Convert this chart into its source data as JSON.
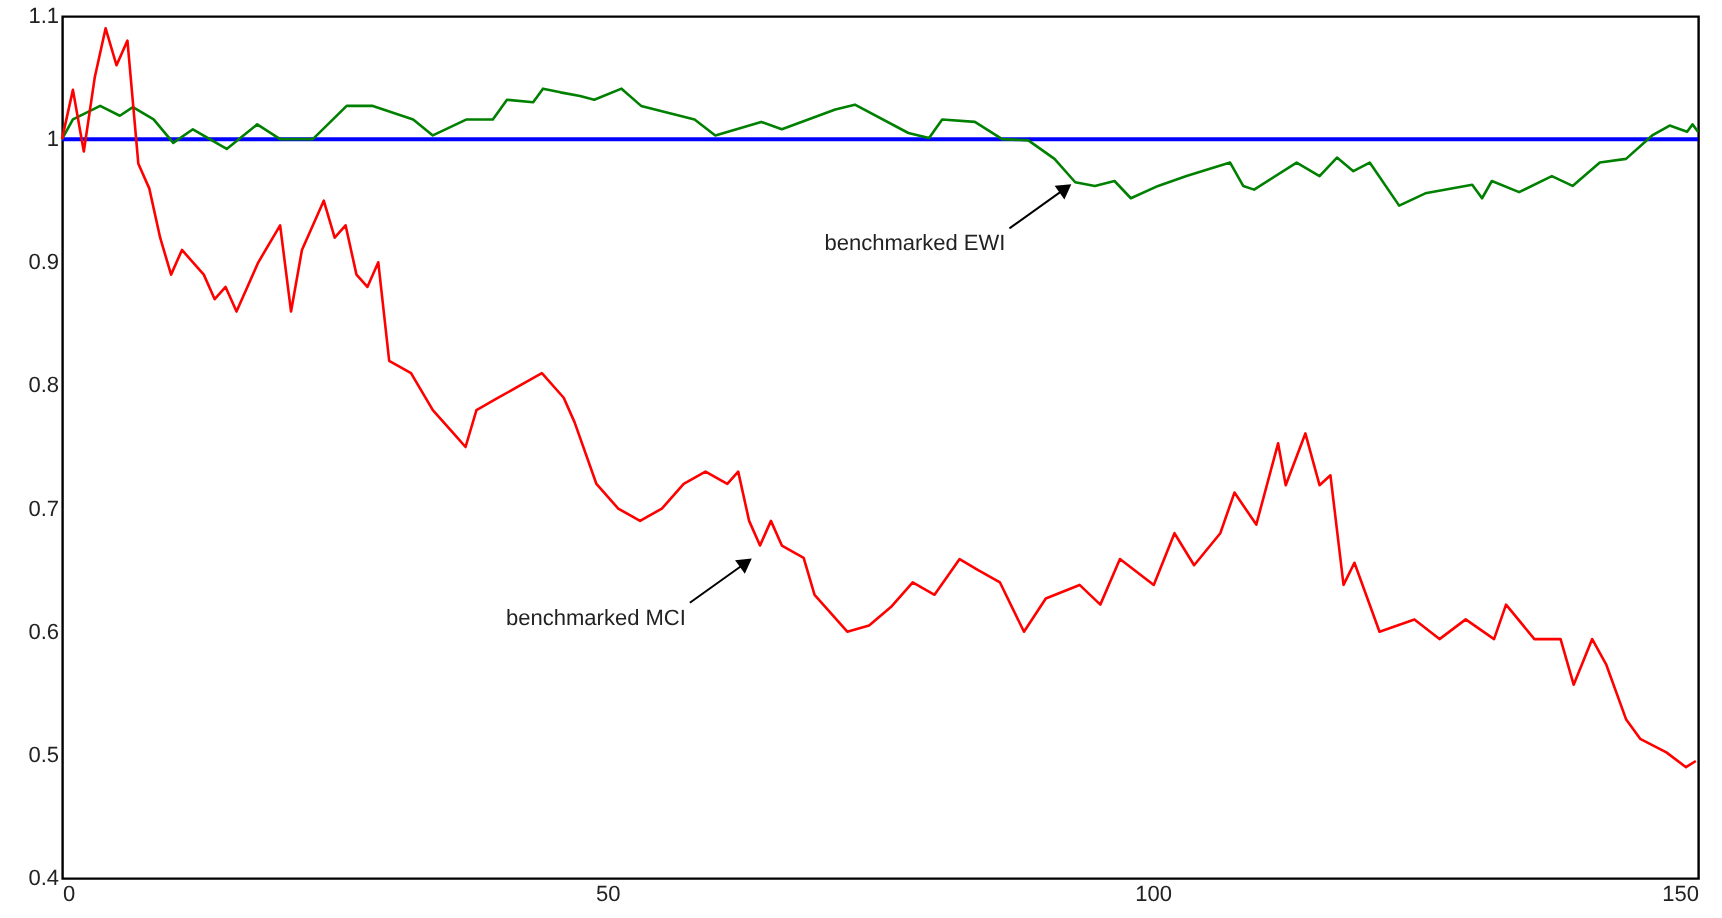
{
  "chart_data": {
    "type": "line",
    "xlim": [
      0,
      150
    ],
    "ylim": [
      0.4,
      1.1
    ],
    "xticks": [
      0,
      50,
      100,
      150
    ],
    "yticks": [
      0.4,
      0.5,
      0.6,
      0.7,
      0.8,
      0.9,
      1,
      1.1
    ],
    "grid": false,
    "marker": "none",
    "line_style": "solid",
    "series": [
      {
        "color": "#0000ff",
        "x": [
          0,
          150
        ],
        "values": [
          1,
          1
        ]
      },
      {
        "color": "#008000",
        "x": [
          0,
          1,
          3.5,
          5.3,
          6.5,
          8.4,
          10.2,
          12,
          15.1,
          17.9,
          20,
          23,
          26.1,
          28.5,
          32.2,
          34,
          37.1,
          39.5,
          40.8,
          43.2,
          44.1,
          45.7,
          47.5,
          48.8,
          51.3,
          53.1,
          58,
          59.9,
          64.1,
          66,
          70.9,
          72.7,
          77.6,
          79.5,
          80.7,
          83.7,
          86.2,
          88.6,
          91,
          92.9,
          94.7,
          96.5,
          98,
          100.5,
          103.1,
          107.1,
          108.3,
          109.3,
          113.2,
          115.3,
          116.9,
          118.4,
          119.9,
          122.6,
          125,
          129.3,
          130.2,
          131.1,
          133.6,
          136.6,
          138.5,
          141,
          143.4,
          145.8,
          147.4,
          149,
          149.5,
          150
        ],
        "values": [
          1.0,
          1.016,
          1.027,
          1.019,
          1.026,
          1.016,
          0.997,
          1.008,
          0.992,
          1.012,
          1.0,
          1.0,
          1.027,
          1.027,
          1.016,
          1.003,
          1.016,
          1.016,
          1.032,
          1.03,
          1.041,
          1.038,
          1.035,
          1.032,
          1.041,
          1.027,
          1.016,
          1.003,
          1.014,
          1.008,
          1.024,
          1.028,
          1.005,
          1.001,
          1.016,
          1.014,
          1.0,
          0.999,
          0.984,
          0.965,
          0.962,
          0.966,
          0.952,
          0.962,
          0.97,
          0.981,
          0.962,
          0.959,
          0.981,
          0.97,
          0.985,
          0.974,
          0.981,
          0.946,
          0.956,
          0.963,
          0.952,
          0.966,
          0.957,
          0.97,
          0.962,
          0.981,
          0.984,
          1.003,
          1.011,
          1.006,
          1.012,
          1.006
        ]
      },
      {
        "color": "#ff0000",
        "x": [
          0,
          1,
          2,
          3,
          4,
          5,
          6,
          7,
          8,
          9,
          10,
          11,
          13,
          14,
          15,
          16,
          18,
          20,
          21,
          22,
          24,
          25,
          26,
          27,
          28,
          29,
          30,
          32,
          34,
          36,
          37,
          38,
          40,
          42,
          44,
          46,
          47,
          49,
          51,
          53,
          55,
          57,
          59,
          61,
          62,
          63,
          64,
          65,
          66,
          68,
          69,
          71,
          72,
          74,
          76,
          78,
          80,
          82.3,
          84,
          86,
          88.2,
          90.2,
          93.3,
          95.2,
          97,
          100.1,
          102,
          103.8,
          106.2,
          107.5,
          109.5,
          111.5,
          112.2,
          114,
          115.3,
          116.3,
          117.5,
          118.5,
          120.8,
          124,
          126.3,
          128.7,
          131.3,
          132.4,
          135,
          137.4,
          138.6,
          140.3,
          141.6,
          143.4,
          144.7,
          147.1,
          148.9,
          149.8
        ],
        "values": [
          1.0,
          1.04,
          0.99,
          1.05,
          1.09,
          1.06,
          1.08,
          0.98,
          0.96,
          0.92,
          0.89,
          0.91,
          0.89,
          0.87,
          0.88,
          0.86,
          0.9,
          0.93,
          0.86,
          0.91,
          0.95,
          0.92,
          0.93,
          0.89,
          0.88,
          0.9,
          0.82,
          0.81,
          0.78,
          0.76,
          0.75,
          0.78,
          0.79,
          0.8,
          0.81,
          0.79,
          0.77,
          0.72,
          0.7,
          0.69,
          0.7,
          0.72,
          0.73,
          0.72,
          0.73,
          0.69,
          0.67,
          0.69,
          0.67,
          0.66,
          0.63,
          0.61,
          0.6,
          0.605,
          0.62,
          0.64,
          0.63,
          0.659,
          0.65,
          0.64,
          0.6,
          0.627,
          0.638,
          0.622,
          0.659,
          0.638,
          0.68,
          0.654,
          0.68,
          0.713,
          0.687,
          0.753,
          0.719,
          0.761,
          0.719,
          0.727,
          0.638,
          0.656,
          0.6,
          0.61,
          0.594,
          0.61,
          0.594,
          0.622,
          0.594,
          0.594,
          0.557,
          0.594,
          0.573,
          0.529,
          0.513,
          0.502,
          0.49,
          0.495
        ]
      }
    ],
    "annotations": [
      {
        "text": "benchmarked EWI",
        "x": 92,
        "y": 0.96
      },
      {
        "text": "benchmarked MCI",
        "x": 62.7,
        "y": 0.656
      }
    ]
  }
}
